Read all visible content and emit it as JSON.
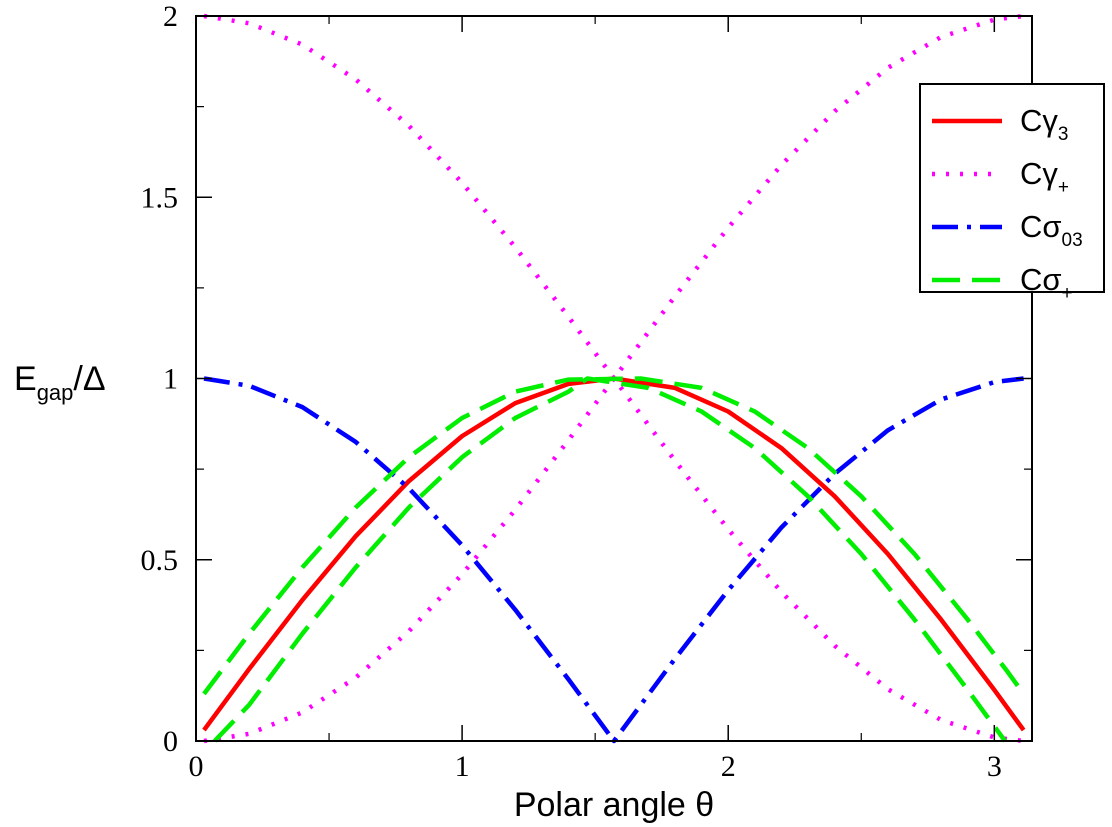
{
  "chart_data": {
    "type": "line",
    "xlabel": "Polar angle θ",
    "ylabel": {
      "main": "E",
      "sub": "gap",
      "suffix": "/Δ"
    },
    "xlim": [
      0,
      3.1416
    ],
    "ylim": [
      0,
      2
    ],
    "xticks": [
      "0",
      "1",
      "2",
      "3"
    ],
    "yticks": [
      "0",
      "0.5",
      "1",
      "1.5",
      "2"
    ],
    "xtick_values": [
      0,
      1,
      2,
      3
    ],
    "ytick_values": [
      0,
      0.5,
      1,
      1.5,
      2
    ],
    "xminor": [
      0.5,
      1.5,
      2.5
    ],
    "yminor": [
      0.25,
      0.75,
      1.25,
      1.75
    ],
    "grid": false,
    "legend_position": "top-right",
    "legend": [
      {
        "base": "Cγ",
        "sub": "3",
        "color": "#ff0000",
        "style": "solid"
      },
      {
        "base": "Cγ",
        "sub": "+",
        "color": "#ff00ff",
        "style": "dotted"
      },
      {
        "base": "Cσ",
        "sub": "03",
        "color": "#0000ff",
        "style": "dash-dot"
      },
      {
        "base": "Cσ",
        "sub": "+",
        "color": "#00ee00",
        "style": "dashed"
      }
    ],
    "series": [
      {
        "id": "cgamma3",
        "color": "#ff0000",
        "style": "solid",
        "x": [
          0.03,
          0.2,
          0.4,
          0.6,
          0.8,
          1.0,
          1.2,
          1.4,
          1.5708,
          1.8,
          2.0,
          2.2,
          2.4,
          2.6,
          2.8,
          3.0,
          3.11
        ],
        "y": [
          0.03,
          0.199,
          0.389,
          0.565,
          0.717,
          0.841,
          0.932,
          0.985,
          1.0,
          0.974,
          0.909,
          0.808,
          0.675,
          0.516,
          0.335,
          0.141,
          0.03
        ]
      },
      {
        "id": "cgamma-plus-a",
        "color": "#ff00ff",
        "style": "dotted",
        "x": [
          0.03,
          0.2,
          0.4,
          0.6,
          0.8,
          1.0,
          1.2,
          1.4,
          1.6,
          1.8,
          2.0,
          2.2,
          2.4,
          2.6,
          2.8,
          3.0,
          3.11
        ],
        "y": [
          2.0,
          1.98,
          1.921,
          1.825,
          1.697,
          1.54,
          1.362,
          1.17,
          0.971,
          0.773,
          0.584,
          0.411,
          0.263,
          0.143,
          0.058,
          0.01,
          0.0
        ]
      },
      {
        "id": "cgamma-plus-b",
        "color": "#ff00ff",
        "style": "dotted",
        "x": [
          0.03,
          0.2,
          0.4,
          0.6,
          0.8,
          1.0,
          1.2,
          1.4,
          1.6,
          1.8,
          2.0,
          2.2,
          2.4,
          2.6,
          2.8,
          3.0,
          3.11
        ],
        "y": [
          0.0,
          0.02,
          0.079,
          0.175,
          0.303,
          0.46,
          0.638,
          0.83,
          1.029,
          1.227,
          1.416,
          1.589,
          1.737,
          1.857,
          1.942,
          1.99,
          2.0
        ]
      },
      {
        "id": "csigma03",
        "color": "#0000ff",
        "style": "dash-dot",
        "x": [
          0.03,
          0.2,
          0.4,
          0.6,
          0.8,
          1.0,
          1.2,
          1.4,
          1.5708,
          1.8,
          2.0,
          2.2,
          2.4,
          2.6,
          2.8,
          3.0,
          3.11
        ],
        "y": [
          1.0,
          0.98,
          0.921,
          0.825,
          0.697,
          0.54,
          0.362,
          0.17,
          0.0,
          0.227,
          0.416,
          0.589,
          0.737,
          0.857,
          0.942,
          0.99,
          1.0
        ]
      },
      {
        "id": "csigma-plus-a",
        "color": "#00ee00",
        "style": "dashed",
        "x": [
          0.03,
          0.2,
          0.4,
          0.6,
          0.8,
          1.0,
          1.2,
          1.4,
          1.6708,
          1.9,
          2.1,
          2.3,
          2.5,
          2.7,
          2.9,
          3.05,
          3.11
        ],
        "y": [
          0.13,
          0.296,
          0.479,
          0.644,
          0.783,
          0.891,
          0.964,
          0.997,
          1.0,
          0.974,
          0.909,
          0.808,
          0.675,
          0.516,
          0.335,
          0.191,
          0.13
        ]
      },
      {
        "id": "csigma-plus-b",
        "color": "#00ee00",
        "style": "dashed",
        "x": [
          0.07,
          0.2,
          0.4,
          0.6,
          0.8,
          1.0,
          1.2,
          1.4,
          1.4708,
          1.7,
          1.9,
          2.1,
          2.3,
          2.5,
          2.7,
          2.9,
          3.04
        ],
        "y": [
          0.0,
          0.1,
          0.296,
          0.479,
          0.644,
          0.783,
          0.891,
          0.964,
          1.0,
          0.974,
          0.909,
          0.808,
          0.675,
          0.516,
          0.335,
          0.141,
          0.0
        ]
      }
    ]
  }
}
